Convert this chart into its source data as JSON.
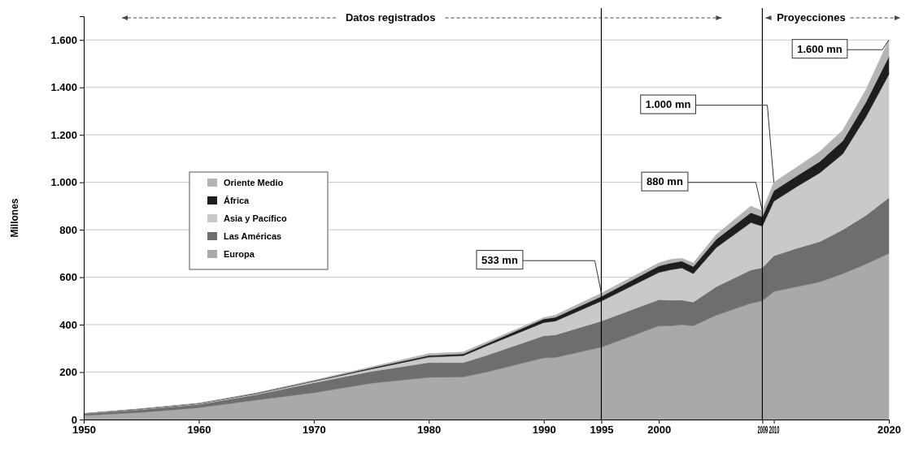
{
  "chart_data": {
    "type": "area",
    "stacked": true,
    "ylabel": "Millones",
    "x": [
      1950,
      1955,
      1960,
      1965,
      1970,
      1975,
      1980,
      1983,
      1985,
      1990,
      1991,
      1995,
      2000,
      2001,
      2002,
      2003,
      2005,
      2008,
      2009,
      2010,
      2012,
      2014,
      2016,
      2018,
      2020
    ],
    "series": [
      {
        "name": "Europa",
        "color": "#a9a9a9",
        "values": [
          17,
          30,
          50,
          82,
          113,
          153,
          178,
          180,
          200,
          260,
          262,
          305,
          395,
          395,
          400,
          395,
          440,
          490,
          500,
          540,
          560,
          580,
          615,
          655,
          700
        ]
      },
      {
        "name": "Las Américas",
        "color": "#6e6e6e",
        "values": [
          7,
          12,
          14,
          23,
          42,
          50,
          62,
          60,
          70,
          93,
          95,
          110,
          110,
          108,
          104,
          100,
          120,
          140,
          140,
          150,
          162,
          170,
          185,
          205,
          235
        ]
      },
      {
        "name": "Asia y Pacífico",
        "color": "#c9c9c9",
        "values": [
          1,
          2,
          3,
          4,
          6,
          10,
          23,
          29,
          40,
          56,
          58,
          84,
          115,
          128,
          135,
          120,
          165,
          200,
          175,
          230,
          260,
          290,
          320,
          415,
          520
        ]
      },
      {
        "name": "África",
        "color": "#1e1e1e",
        "values": [
          0,
          1,
          1,
          2,
          2,
          5,
          7,
          8,
          9,
          15,
          16,
          20,
          27,
          28,
          29,
          30,
          35,
          42,
          40,
          45,
          45,
          48,
          55,
          62,
          75
        ]
      },
      {
        "name": "Oriente Medio",
        "color": "#b4b4b4",
        "values": [
          0,
          0,
          1,
          1,
          3,
          4,
          8,
          8,
          8,
          6,
          9,
          14,
          13,
          16,
          12,
          15,
          20,
          28,
          25,
          35,
          37,
          42,
          45,
          53,
          70
        ]
      }
    ],
    "xlim": [
      1950,
      2020
    ],
    "xticks": [
      1950,
      1960,
      1970,
      1980,
      1990,
      1995,
      2000,
      2009,
      2010,
      2020
    ],
    "ylim": [
      0,
      1700
    ],
    "yticks": [
      {
        "value": 0,
        "label": "0"
      },
      {
        "value": 200,
        "label": "200"
      },
      {
        "value": 400,
        "label": "400"
      },
      {
        "value": 600,
        "label": "600"
      },
      {
        "value": 800,
        "label": "800"
      },
      {
        "value": 1000,
        "label": "1.000"
      },
      {
        "value": 1200,
        "label": "1.200"
      },
      {
        "value": 1400,
        "label": "1.400"
      },
      {
        "value": 1600,
        "label": "1.600"
      }
    ],
    "grid": "y",
    "legend": "left",
    "ref_lines": [
      {
        "axis": "x",
        "value": 1995,
        "color": "#000000"
      },
      {
        "axis": "x",
        "value": 2009,
        "color": "#000000"
      }
    ],
    "annotations": [
      "Datos registrados",
      "Proyecciones",
      {
        "text": "533 mn",
        "x": 1995,
        "y": 533
      },
      {
        "text": "880 mn",
        "x": 2009,
        "y": 880
      },
      {
        "text": "1.000 mn",
        "x": 2010,
        "y": 1000
      },
      {
        "text": "1.600 mn",
        "x": 2020,
        "y": 1600
      }
    ]
  }
}
